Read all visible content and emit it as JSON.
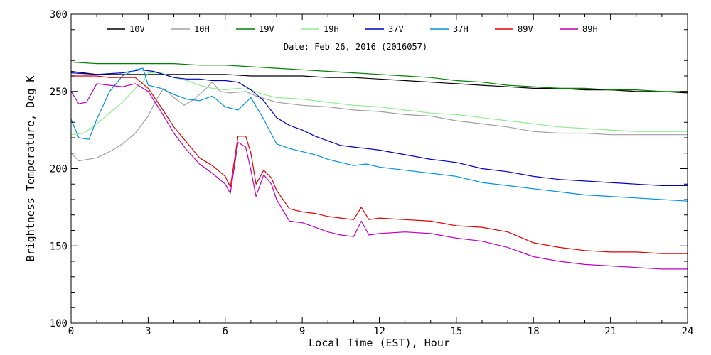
{
  "chart_data": {
    "type": "line",
    "subtitle": "Date: Feb 26, 2016 (2016057)",
    "xlabel": "Local Time (EST), Hour",
    "ylabel": "Brightness Temperature, Deg K",
    "xlim": [
      0,
      24
    ],
    "ylim": [
      100,
      300
    ],
    "x_ticks": [
      0,
      3,
      6,
      9,
      12,
      15,
      18,
      21,
      24
    ],
    "y_ticks": [
      100,
      150,
      200,
      250,
      300
    ],
    "grid": false,
    "legend_position": "top",
    "series": [
      {
        "name": "10V",
        "color": "#000000",
        "points": [
          [
            0,
            263
          ],
          [
            1,
            261
          ],
          [
            2,
            261
          ],
          [
            3,
            261
          ],
          [
            4,
            261
          ],
          [
            5,
            261
          ],
          [
            6,
            261
          ],
          [
            7,
            260
          ],
          [
            8,
            260
          ],
          [
            9,
            260
          ],
          [
            10,
            259
          ],
          [
            11,
            259
          ],
          [
            12,
            258
          ],
          [
            13,
            257
          ],
          [
            14,
            256
          ],
          [
            15,
            255
          ],
          [
            16,
            254
          ],
          [
            17,
            253
          ],
          [
            18,
            252
          ],
          [
            19,
            252
          ],
          [
            20,
            251
          ],
          [
            21,
            251
          ],
          [
            22,
            250
          ],
          [
            23,
            250
          ],
          [
            24,
            249
          ]
        ]
      },
      {
        "name": "10H",
        "color": "#a0a0a0",
        "points": [
          [
            0,
            210
          ],
          [
            0.3,
            205
          ],
          [
            1,
            207
          ],
          [
            1.5,
            211
          ],
          [
            2,
            216
          ],
          [
            2.5,
            223
          ],
          [
            3,
            234
          ],
          [
            3.3,
            244
          ],
          [
            3.6,
            252
          ],
          [
            4,
            246
          ],
          [
            4.4,
            241
          ],
          [
            4.8,
            245
          ],
          [
            5.2,
            251
          ],
          [
            5.5,
            256
          ],
          [
            5.8,
            250
          ],
          [
            6.2,
            249
          ],
          [
            6.8,
            250
          ],
          [
            7.2,
            247
          ],
          [
            7.6,
            245
          ],
          [
            8,
            243
          ],
          [
            9,
            241
          ],
          [
            10,
            240
          ],
          [
            11,
            238
          ],
          [
            12,
            237
          ],
          [
            13,
            235
          ],
          [
            14,
            234
          ],
          [
            15,
            231
          ],
          [
            16,
            229
          ],
          [
            17,
            227
          ],
          [
            18,
            224
          ],
          [
            19,
            223
          ],
          [
            20,
            223
          ],
          [
            21,
            222
          ],
          [
            22,
            222
          ],
          [
            23,
            222
          ],
          [
            24,
            222
          ]
        ]
      },
      {
        "name": "19V",
        "color": "#008000",
        "points": [
          [
            0,
            269
          ],
          [
            1,
            268
          ],
          [
            2,
            268
          ],
          [
            3,
            268
          ],
          [
            4,
            268
          ],
          [
            5,
            267
          ],
          [
            6,
            267
          ],
          [
            7,
            266
          ],
          [
            8,
            265
          ],
          [
            9,
            264
          ],
          [
            10,
            263
          ],
          [
            11,
            262
          ],
          [
            12,
            261
          ],
          [
            13,
            260
          ],
          [
            14,
            259
          ],
          [
            15,
            257
          ],
          [
            16,
            256
          ],
          [
            17,
            254
          ],
          [
            18,
            253
          ],
          [
            19,
            252
          ],
          [
            20,
            252
          ],
          [
            21,
            251
          ],
          [
            22,
            251
          ],
          [
            23,
            250
          ],
          [
            24,
            250
          ]
        ]
      },
      {
        "name": "19H",
        "color": "#90ee90",
        "points": [
          [
            0,
            222
          ],
          [
            0.5,
            223
          ],
          [
            1,
            229
          ],
          [
            1.5,
            236
          ],
          [
            2,
            243
          ],
          [
            2.5,
            252
          ],
          [
            2.8,
            256
          ],
          [
            3,
            262
          ],
          [
            3.5,
            262
          ],
          [
            4,
            259
          ],
          [
            4.5,
            257
          ],
          [
            5,
            254
          ],
          [
            5.5,
            252
          ],
          [
            6,
            251
          ],
          [
            6.5,
            252
          ],
          [
            7,
            251
          ],
          [
            7.5,
            248
          ],
          [
            8,
            246
          ],
          [
            9,
            245
          ],
          [
            10,
            243
          ],
          [
            11,
            241
          ],
          [
            12,
            240
          ],
          [
            13,
            238
          ],
          [
            14,
            236
          ],
          [
            15,
            235
          ],
          [
            16,
            233
          ],
          [
            17,
            231
          ],
          [
            18,
            229
          ],
          [
            19,
            227
          ],
          [
            20,
            226
          ],
          [
            21,
            225
          ],
          [
            22,
            224
          ],
          [
            23,
            224
          ],
          [
            24,
            224
          ]
        ]
      },
      {
        "name": "37V",
        "color": "#0000c0",
        "points": [
          [
            0,
            262
          ],
          [
            1,
            261
          ],
          [
            2,
            262
          ],
          [
            2.7,
            264
          ],
          [
            3.2,
            263
          ],
          [
            4,
            259
          ],
          [
            4.5,
            258
          ],
          [
            5,
            258
          ],
          [
            5.5,
            257
          ],
          [
            6,
            257
          ],
          [
            6.5,
            256
          ],
          [
            7,
            251
          ],
          [
            7.5,
            244
          ],
          [
            8,
            233
          ],
          [
            8.5,
            228
          ],
          [
            9,
            225
          ],
          [
            9.5,
            221
          ],
          [
            10,
            218
          ],
          [
            10.5,
            215
          ],
          [
            11,
            214
          ],
          [
            11.5,
            213
          ],
          [
            12,
            212
          ],
          [
            13,
            209
          ],
          [
            14,
            206
          ],
          [
            15,
            204
          ],
          [
            16,
            200
          ],
          [
            17,
            198
          ],
          [
            18,
            195
          ],
          [
            19,
            193
          ],
          [
            20,
            192
          ],
          [
            21,
            191
          ],
          [
            22,
            190
          ],
          [
            23,
            189
          ],
          [
            24,
            189
          ]
        ]
      },
      {
        "name": "37H",
        "color": "#0090e0",
        "points": [
          [
            0,
            232
          ],
          [
            0.3,
            220
          ],
          [
            0.7,
            219
          ],
          [
            1,
            232
          ],
          [
            1.5,
            250
          ],
          [
            2,
            260
          ],
          [
            2.5,
            264
          ],
          [
            2.8,
            265
          ],
          [
            3,
            254
          ],
          [
            3.5,
            252
          ],
          [
            4,
            248
          ],
          [
            4.5,
            245
          ],
          [
            5,
            244
          ],
          [
            5.5,
            247
          ],
          [
            6,
            240
          ],
          [
            6.5,
            238
          ],
          [
            7,
            246
          ],
          [
            7.5,
            232
          ],
          [
            8,
            216
          ],
          [
            8.5,
            213
          ],
          [
            9,
            211
          ],
          [
            9.5,
            209
          ],
          [
            10,
            206
          ],
          [
            10.5,
            204
          ],
          [
            11,
            202
          ],
          [
            11.5,
            203
          ],
          [
            12,
            201
          ],
          [
            13,
            199
          ],
          [
            14,
            197
          ],
          [
            15,
            195
          ],
          [
            16,
            191
          ],
          [
            17,
            189
          ],
          [
            18,
            187
          ],
          [
            19,
            185
          ],
          [
            20,
            183
          ],
          [
            21,
            182
          ],
          [
            22,
            181
          ],
          [
            23,
            180
          ],
          [
            24,
            179
          ]
        ]
      },
      {
        "name": "89V",
        "color": "#e00000",
        "points": [
          [
            0,
            260
          ],
          [
            0.5,
            260
          ],
          [
            1,
            260
          ],
          [
            1.5,
            259
          ],
          [
            2,
            259
          ],
          [
            2.5,
            259
          ],
          [
            3,
            252
          ],
          [
            3.5,
            240
          ],
          [
            4,
            227
          ],
          [
            4.5,
            217
          ],
          [
            5,
            207
          ],
          [
            5.5,
            202
          ],
          [
            6,
            195
          ],
          [
            6.2,
            188
          ],
          [
            6.5,
            221
          ],
          [
            6.8,
            221
          ],
          [
            7,
            210
          ],
          [
            7.2,
            190
          ],
          [
            7.5,
            199
          ],
          [
            7.8,
            194
          ],
          [
            8,
            186
          ],
          [
            8.5,
            174
          ],
          [
            9,
            172
          ],
          [
            9.5,
            171
          ],
          [
            10,
            169
          ],
          [
            10.5,
            168
          ],
          [
            11,
            167
          ],
          [
            11.3,
            175
          ],
          [
            11.6,
            167
          ],
          [
            12,
            168
          ],
          [
            13,
            167
          ],
          [
            14,
            166
          ],
          [
            15,
            163
          ],
          [
            16,
            162
          ],
          [
            17,
            159
          ],
          [
            18,
            152
          ],
          [
            19,
            149
          ],
          [
            20,
            147
          ],
          [
            21,
            146
          ],
          [
            22,
            146
          ],
          [
            23,
            145
          ],
          [
            24,
            145
          ]
        ]
      },
      {
        "name": "89H",
        "color": "#c000c0",
        "points": [
          [
            0,
            250
          ],
          [
            0.3,
            242
          ],
          [
            0.6,
            243
          ],
          [
            1,
            255
          ],
          [
            1.5,
            254
          ],
          [
            2,
            253
          ],
          [
            2.5,
            255
          ],
          [
            3,
            250
          ],
          [
            3.5,
            237
          ],
          [
            4,
            223
          ],
          [
            4.5,
            212
          ],
          [
            5,
            203
          ],
          [
            5.5,
            197
          ],
          [
            6,
            190
          ],
          [
            6.2,
            184
          ],
          [
            6.5,
            217
          ],
          [
            6.8,
            214
          ],
          [
            7,
            199
          ],
          [
            7.2,
            182
          ],
          [
            7.5,
            196
          ],
          [
            7.8,
            190
          ],
          [
            8,
            180
          ],
          [
            8.5,
            166
          ],
          [
            9,
            165
          ],
          [
            9.5,
            162
          ],
          [
            10,
            159
          ],
          [
            10.5,
            157
          ],
          [
            11,
            156
          ],
          [
            11.3,
            166
          ],
          [
            11.6,
            157
          ],
          [
            12,
            158
          ],
          [
            13,
            159
          ],
          [
            14,
            158
          ],
          [
            15,
            155
          ],
          [
            16,
            153
          ],
          [
            17,
            149
          ],
          [
            18,
            143
          ],
          [
            19,
            140
          ],
          [
            20,
            138
          ],
          [
            21,
            137
          ],
          [
            22,
            136
          ],
          [
            23,
            135
          ],
          [
            24,
            135
          ]
        ]
      }
    ]
  }
}
